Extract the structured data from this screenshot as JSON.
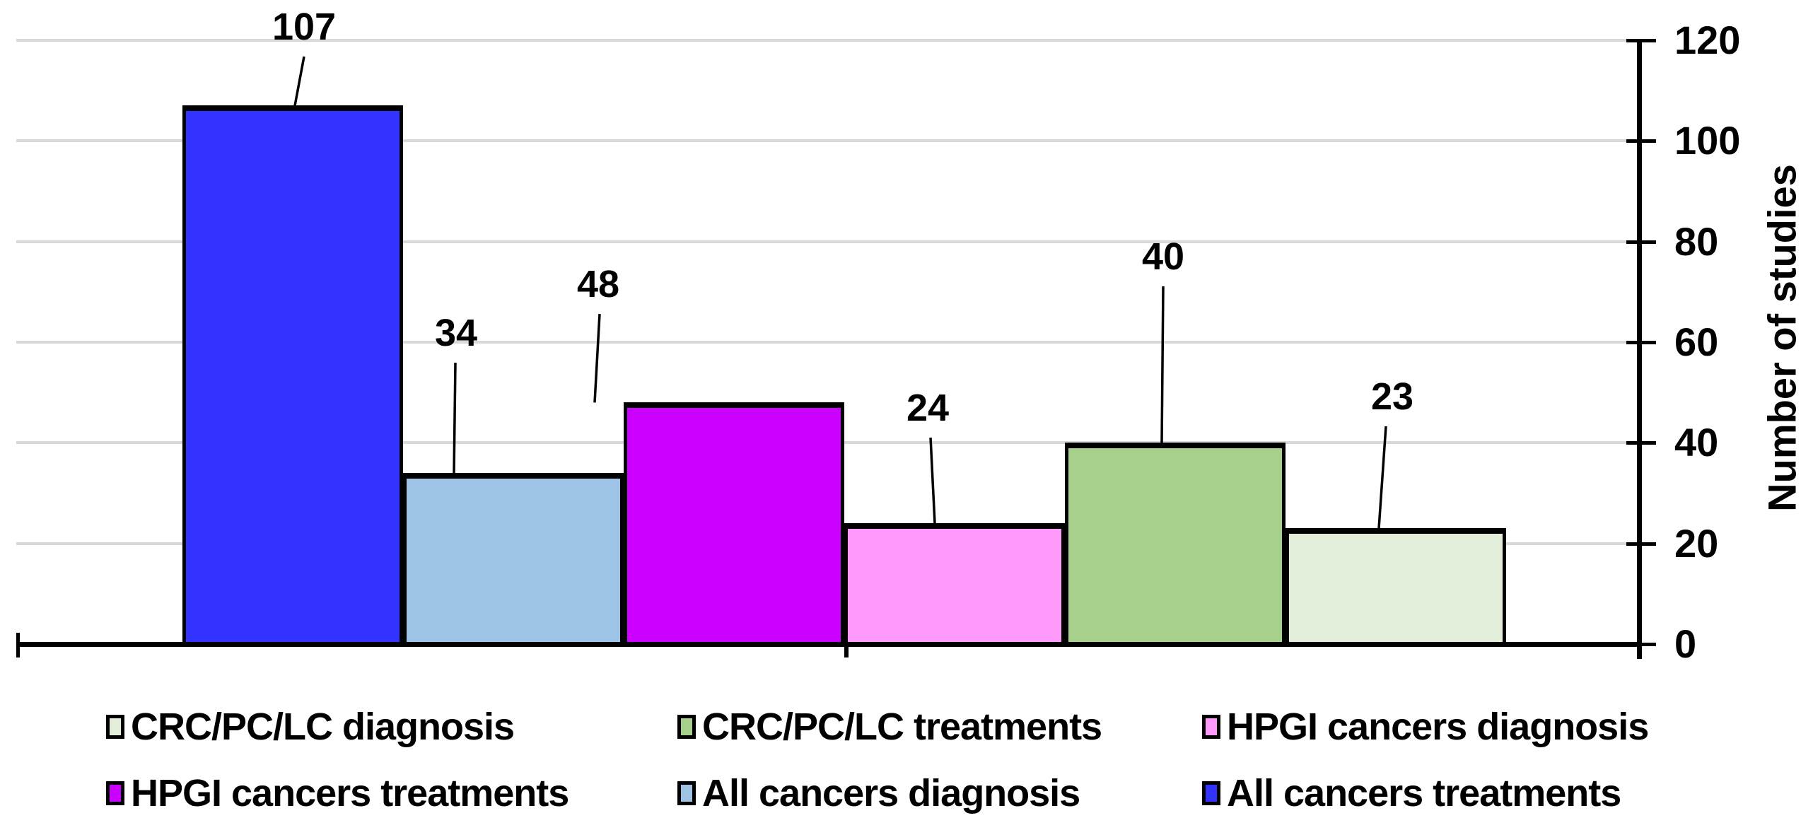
{
  "chart_data": {
    "type": "bar",
    "title": "",
    "xlabel": "",
    "ylabel": "Number of studies",
    "ylim": [
      0,
      120
    ],
    "yticks": [
      0,
      20,
      40,
      60,
      80,
      100,
      120
    ],
    "grid": true,
    "y_axis_side": "right",
    "legend_position": "bottom",
    "bars": [
      {
        "name": "All cancers treatments",
        "value": 107,
        "color": "#3333FF"
      },
      {
        "name": "All cancers diagnosis",
        "value": 34,
        "color": "#9DC3E6"
      },
      {
        "name": "HPGI cancers treatments",
        "value": 48,
        "color": "#CC00FF"
      },
      {
        "name": "HPGI cancers diagnosis",
        "value": 24,
        "color": "#FF99FA"
      },
      {
        "name": "CRC/PC/LC treatments",
        "value": 40,
        "color": "#A8D08D"
      },
      {
        "name": "CRC/PC/LC diagnosis",
        "value": 23,
        "color": "#E2EEDA"
      }
    ],
    "legend": {
      "rows": [
        [
          {
            "label": "CRC/PC/LC diagnosis",
            "color": "#E2EEDA"
          },
          {
            "label": "CRC/PC/LC treatments",
            "color": "#A8D08D"
          },
          {
            "label": "HPGI cancers diagnosis",
            "color": "#FF99FA"
          }
        ],
        [
          {
            "label": "HPGI cancers treatments",
            "color": "#CC00FF"
          },
          {
            "label": "All cancers diagnosis",
            "color": "#9DC3E6"
          },
          {
            "label": "All cancers treatments",
            "color": "#3333FF"
          }
        ]
      ]
    },
    "colors": {
      "gridline": "#D9D9D9",
      "axis": "#000000",
      "text": "#000000",
      "background": "#FFFFFF"
    }
  }
}
